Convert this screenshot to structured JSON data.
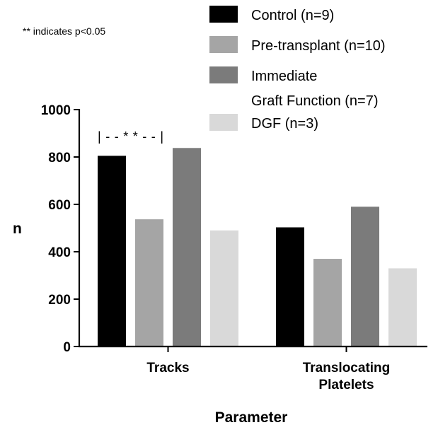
{
  "note": "** indicates p<0.05",
  "chart_data": {
    "type": "bar",
    "categories": [
      [
        "Tracks"
      ],
      [
        "Translocating",
        "Platelets"
      ]
    ],
    "series": [
      {
        "name": "Control (n=9)",
        "color": "#000000",
        "values": [
          805,
          503
        ]
      },
      {
        "name": "Pre-transplant (n=10)",
        "color": "#a5a5a5",
        "values": [
          537,
          370
        ]
      },
      {
        "name": [
          "Immediate",
          "Graft Function (n=7)"
        ],
        "color": "#7b7b7b",
        "values": [
          838,
          590
        ]
      },
      {
        "name": "DGF (n=3)",
        "color": "#d9d9d9",
        "values": [
          490,
          330
        ]
      }
    ],
    "title": "",
    "xlabel": "Parameter",
    "ylabel": "n",
    "ylim": [
      0,
      1000
    ],
    "yticks": [
      0,
      200,
      400,
      600,
      800,
      1000
    ],
    "legend": "top-right",
    "grid": false,
    "annotation": {
      "text": "|--**--|",
      "category": 0,
      "between_series": [
        0,
        1
      ]
    }
  }
}
